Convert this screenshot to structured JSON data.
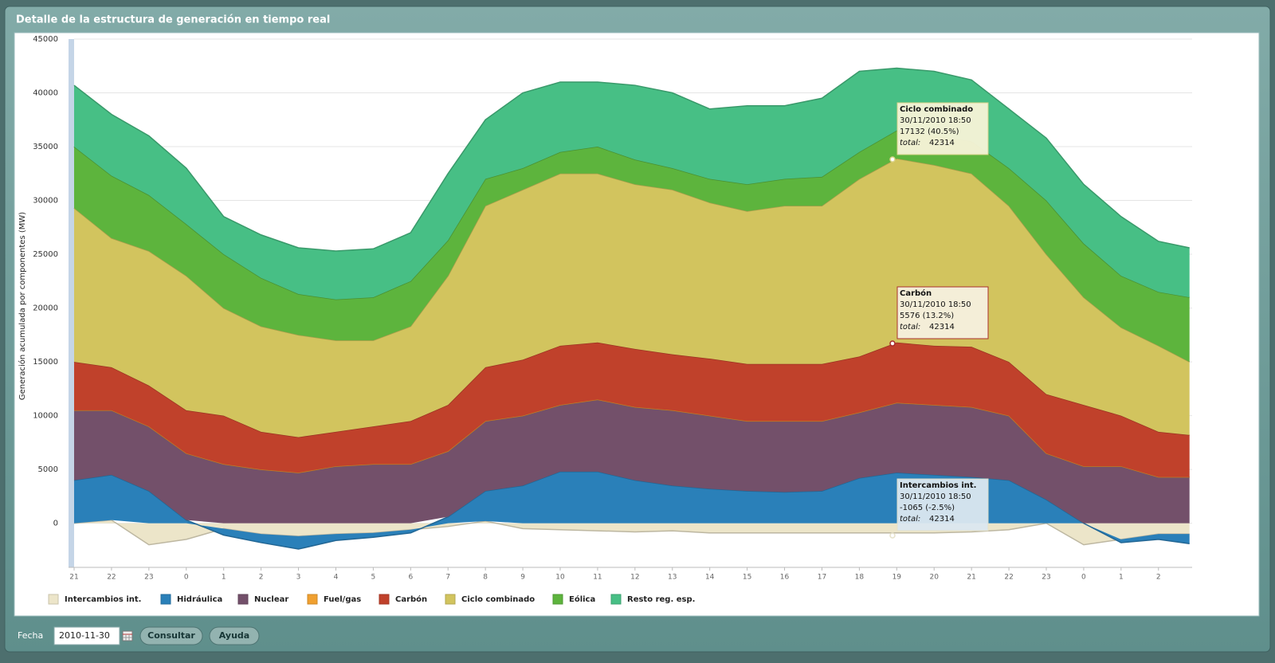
{
  "header": {
    "title": "Detalle de la estructura de generación en tiempo real"
  },
  "form": {
    "date_label": "Fecha",
    "date": "2010-11-30",
    "buttons": [
      "Consultar",
      "Ayuda"
    ]
  },
  "chart_data": {
    "type": "area",
    "stacked": true,
    "ylabel": "Generación acumulada por componentes (MW)",
    "x": [
      0,
      1,
      2,
      3,
      4,
      5,
      6,
      7,
      8,
      9,
      10,
      11,
      12,
      13,
      14,
      15,
      16,
      17,
      18,
      19,
      20,
      21,
      22,
      23,
      24,
      25,
      26,
      27,
      28,
      29,
      29.83
    ],
    "xlim": [
      0,
      29.9
    ],
    "xticks": [
      {
        "value": 0,
        "label": "21"
      },
      {
        "value": 1,
        "label": "22"
      },
      {
        "value": 2,
        "label": "23"
      },
      {
        "value": 3,
        "label": "0"
      },
      {
        "value": 4,
        "label": "1"
      },
      {
        "value": 5,
        "label": "2"
      },
      {
        "value": 6,
        "label": "3"
      },
      {
        "value": 7,
        "label": "4"
      },
      {
        "value": 8,
        "label": "5"
      },
      {
        "value": 9,
        "label": "6"
      },
      {
        "value": 10,
        "label": "7"
      },
      {
        "value": 11,
        "label": "8"
      },
      {
        "value": 12,
        "label": "9"
      },
      {
        "value": 13,
        "label": "10"
      },
      {
        "value": 14,
        "label": "11"
      },
      {
        "value": 15,
        "label": "12"
      },
      {
        "value": 16,
        "label": "13"
      },
      {
        "value": 17,
        "label": "14"
      },
      {
        "value": 18,
        "label": "15"
      },
      {
        "value": 19,
        "label": "16"
      },
      {
        "value": 20,
        "label": "17"
      },
      {
        "value": 21,
        "label": "18"
      },
      {
        "value": 22,
        "label": "19"
      },
      {
        "value": 23,
        "label": "20"
      },
      {
        "value": 24,
        "label": "21"
      },
      {
        "value": 25,
        "label": "22"
      },
      {
        "value": 26,
        "label": "23"
      },
      {
        "value": 27,
        "label": "0"
      },
      {
        "value": 28,
        "label": "1"
      },
      {
        "value": 29,
        "label": "2"
      }
    ],
    "ylim": [
      -4100,
      45000
    ],
    "yticks": [
      0,
      5000,
      10000,
      15000,
      20000,
      25000,
      30000,
      35000,
      40000,
      45000
    ],
    "grid": true,
    "series": [
      {
        "name": "Intercambios int.",
        "color": "#ece5c9",
        "values": [
          0,
          300,
          -2000,
          -1500,
          -500,
          -1000,
          -1200,
          -1000,
          -900,
          -600,
          -300,
          200,
          -500,
          -600,
          -700,
          -800,
          -700,
          -900,
          -900,
          -900,
          -900,
          -900,
          -900,
          -900,
          -800,
          -600,
          0,
          -2000,
          -1500,
          -1000,
          -1000
        ]
      },
      {
        "name": "Hidráulica",
        "color": "#2a80b9",
        "values": [
          4000,
          4200,
          3000,
          300,
          -600,
          -800,
          -1200,
          -600,
          -400,
          -300,
          600,
          2800,
          3500,
          4800,
          4800,
          4000,
          3500,
          3200,
          3000,
          2900,
          3000,
          4200,
          4700,
          4500,
          4300,
          4000,
          2200,
          0,
          -300,
          -500,
          -900
        ]
      },
      {
        "name": "Nuclear",
        "color": "#73506a",
        "values": [
          6500,
          6000,
          6000,
          6200,
          5500,
          5000,
          4700,
          5300,
          5500,
          5500,
          6100,
          6500,
          6500,
          6200,
          6700,
          6800,
          7000,
          6800,
          6500,
          6600,
          6500,
          6100,
          6500,
          6500,
          6500,
          6000,
          4300,
          5300,
          5300,
          4300,
          4300
        ]
      },
      {
        "name": "Fuel/gas",
        "color": "#f0a030",
        "values": [
          0,
          0,
          0,
          0,
          0,
          0,
          0,
          0,
          0,
          0,
          0,
          0,
          0,
          0,
          0,
          0,
          0,
          0,
          0,
          0,
          0,
          0,
          0,
          0,
          0,
          0,
          0,
          0,
          0,
          0,
          0
        ]
      },
      {
        "name": "Carbón",
        "color": "#c0412b",
        "values": [
          4500,
          4000,
          3800,
          4000,
          4500,
          3500,
          3300,
          3200,
          3500,
          4000,
          4300,
          5000,
          5200,
          5500,
          5300,
          5400,
          5200,
          5300,
          5300,
          5300,
          5300,
          5200,
          5600,
          5500,
          5600,
          5000,
          5500,
          5700,
          4700,
          4200,
          3900
        ]
      },
      {
        "name": "Ciclo combinado",
        "color": "#d2c45e",
        "values": [
          14300,
          12000,
          12500,
          12500,
          10000,
          9800,
          9500,
          8500,
          8000,
          8800,
          12000,
          15000,
          15800,
          16000,
          15700,
          15300,
          15300,
          14500,
          14200,
          14700,
          14700,
          16500,
          17100,
          16800,
          16100,
          14500,
          13000,
          10000,
          8200,
          8000,
          6800
        ]
      },
      {
        "name": "Eólica",
        "color": "#5db43d",
        "values": [
          5700,
          5800,
          5200,
          4800,
          5000,
          4500,
          3800,
          3800,
          4000,
          4200,
          3300,
          2500,
          2000,
          2000,
          2500,
          2300,
          2000,
          2200,
          2500,
          2500,
          2700,
          2500,
          2600,
          2700,
          3000,
          3500,
          5000,
          5000,
          4800,
          5000,
          6000
        ]
      },
      {
        "name": "Resto reg. esp.",
        "color": "#47bf85",
        "values": [
          5700,
          5700,
          5500,
          5200,
          3500,
          4000,
          4300,
          4500,
          4500,
          4500,
          6200,
          5500,
          7000,
          6500,
          6000,
          6900,
          7000,
          6500,
          7300,
          6800,
          7300,
          7500,
          5800,
          6000,
          5700,
          5500,
          5800,
          5500,
          5500,
          4700,
          4600
        ]
      }
    ],
    "tooltips": [
      {
        "title": "Ciclo combinado",
        "date": "30/11/2010 18:50",
        "value": "17132 (40.5%)",
        "total_label": "total:",
        "total": 42314
      },
      {
        "title": "Carbón",
        "date": "30/11/2010 18:50",
        "value": "5576 (13.2%)",
        "total_label": "total:",
        "total": 42314
      },
      {
        "title": "Intercambios int.",
        "date": "30/11/2010 18:50",
        "value": "-1065 (-2.5%)",
        "total_label": "total:",
        "total": 42314
      }
    ]
  }
}
